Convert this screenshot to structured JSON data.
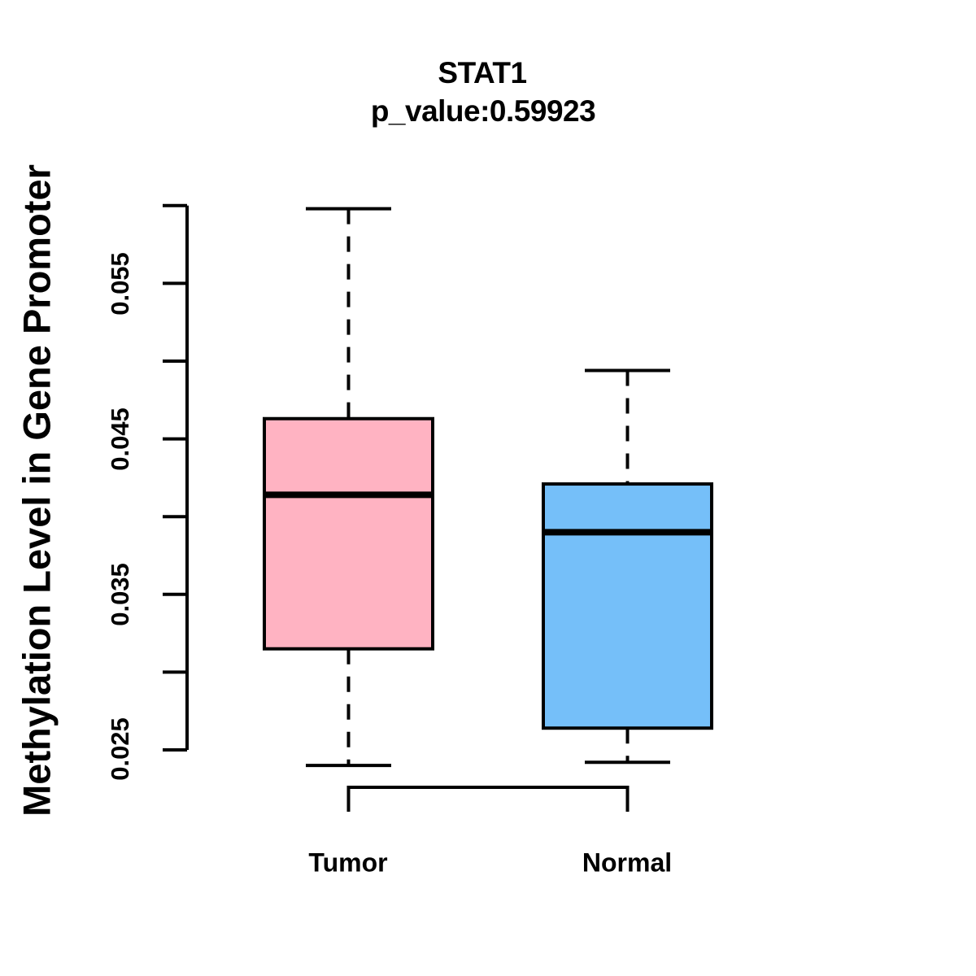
{
  "chart_data": {
    "type": "boxplot",
    "title": "STAT1",
    "subtitle": "p_value:0.59923",
    "ylabel": "Methylation Level in Gene Promoter",
    "xlabel": "",
    "categories": [
      "Tumor",
      "Normal"
    ],
    "series": [
      {
        "name": "Tumor",
        "color": "#FFB3C2",
        "whisker_low": 0.024,
        "q1": 0.0315,
        "median": 0.0414,
        "q3": 0.0463,
        "whisker_high": 0.0598
      },
      {
        "name": "Normal",
        "color": "#75BFF9",
        "whisker_low": 0.0242,
        "q1": 0.0264,
        "median": 0.039,
        "q3": 0.0421,
        "whisker_high": 0.0494
      }
    ],
    "ylim": [
      0.025,
      0.06
    ],
    "y_tick_step": 0.005,
    "y_tick_labels": [
      "0.025",
      "0.035",
      "0.045",
      "0.055"
    ],
    "y_tick_label_values": [
      0.025,
      0.035,
      0.045,
      0.055
    ],
    "grid": false,
    "legend": "none",
    "stroke_color": "#000000"
  }
}
